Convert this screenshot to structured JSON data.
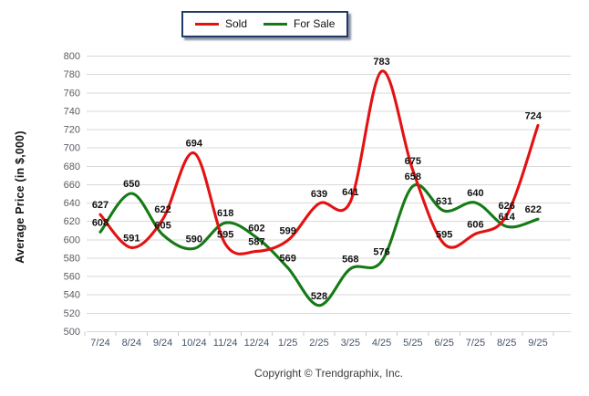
{
  "legend": {
    "items": [
      {
        "label": "Sold",
        "color": "#e31212"
      },
      {
        "label": "For Sale",
        "color": "#157a15"
      }
    ],
    "border_color": "#1f3a68"
  },
  "chart_data": {
    "type": "line",
    "title": "",
    "ylabel": "Average Price (in $,000)",
    "xlabel": "",
    "categories": [
      "7/24",
      "8/24",
      "9/24",
      "10/24",
      "11/24",
      "12/24",
      "1/25",
      "2/25",
      "3/25",
      "4/25",
      "5/25",
      "6/25",
      "7/25",
      "8/25",
      "9/25"
    ],
    "series": [
      {
        "name": "Sold",
        "color": "#e31212",
        "values": [
          627,
          591,
          622,
          694,
          595,
          587,
          599,
          639,
          641,
          783,
          675,
          595,
          606,
          626,
          724
        ]
      },
      {
        "name": "For Sale",
        "color": "#157a15",
        "values": [
          608,
          650,
          605,
          590,
          618,
          602,
          569,
          528,
          568,
          576,
          658,
          631,
          640,
          614,
          622
        ]
      }
    ],
    "ylim": [
      500,
      800
    ],
    "ytick_step": 20,
    "yticks": [
      500,
      520,
      540,
      560,
      580,
      600,
      620,
      640,
      660,
      680,
      700,
      720,
      740,
      760,
      780,
      800
    ],
    "grid": "horizontal",
    "gridline_color": "#d9d9d9",
    "ytick_label_color": "#5b5b63",
    "xtick_label_color": "#44546a",
    "point_label_color": "#111111",
    "legend_position": "top-center",
    "smooth": true
  },
  "footer": {
    "copyright": "Copyright © Trendgraphix, Inc."
  }
}
